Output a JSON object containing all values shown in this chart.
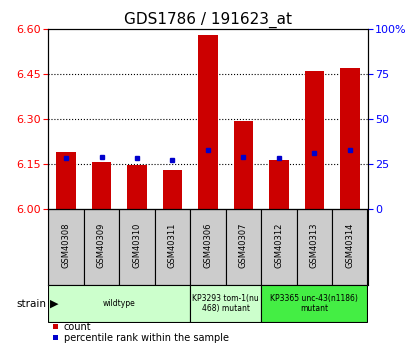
{
  "title": "GDS1786 / 191623_at",
  "samples": [
    "GSM40308",
    "GSM40309",
    "GSM40310",
    "GSM40311",
    "GSM40306",
    "GSM40307",
    "GSM40312",
    "GSM40313",
    "GSM40314"
  ],
  "count_values": [
    6.19,
    6.155,
    6.145,
    6.13,
    6.58,
    6.295,
    6.163,
    6.46,
    6.47
  ],
  "percentile_values": [
    28,
    29,
    28,
    27,
    33,
    29,
    28,
    31,
    33
  ],
  "ylim_left": [
    6.0,
    6.6
  ],
  "ylim_right": [
    0,
    100
  ],
  "yticks_left": [
    6.0,
    6.15,
    6.3,
    6.45,
    6.6
  ],
  "yticks_right": [
    0,
    25,
    50,
    75,
    100
  ],
  "bar_color": "#CC0000",
  "dot_color": "#0000CC",
  "group_starts": [
    0,
    4,
    6
  ],
  "group_ends": [
    4,
    6,
    9
  ],
  "group_labels": [
    "wildtype",
    "KP3293 tom-1(nu\n468) mutant",
    "KP3365 unc-43(n1186)\nmutant"
  ],
  "group_colors": [
    "#ccffcc",
    "#ccffcc",
    "#44ee44"
  ],
  "sample_box_color": "#cccccc",
  "strain_label": "strain",
  "legend_count": "count",
  "legend_percentile": "percentile rank within the sample",
  "bg_color": "#ffffff",
  "plot_bg": "#ffffff",
  "title_fontsize": 11,
  "tick_fontsize": 8,
  "sample_fontsize": 6,
  "strain_fontsize": 7.5
}
